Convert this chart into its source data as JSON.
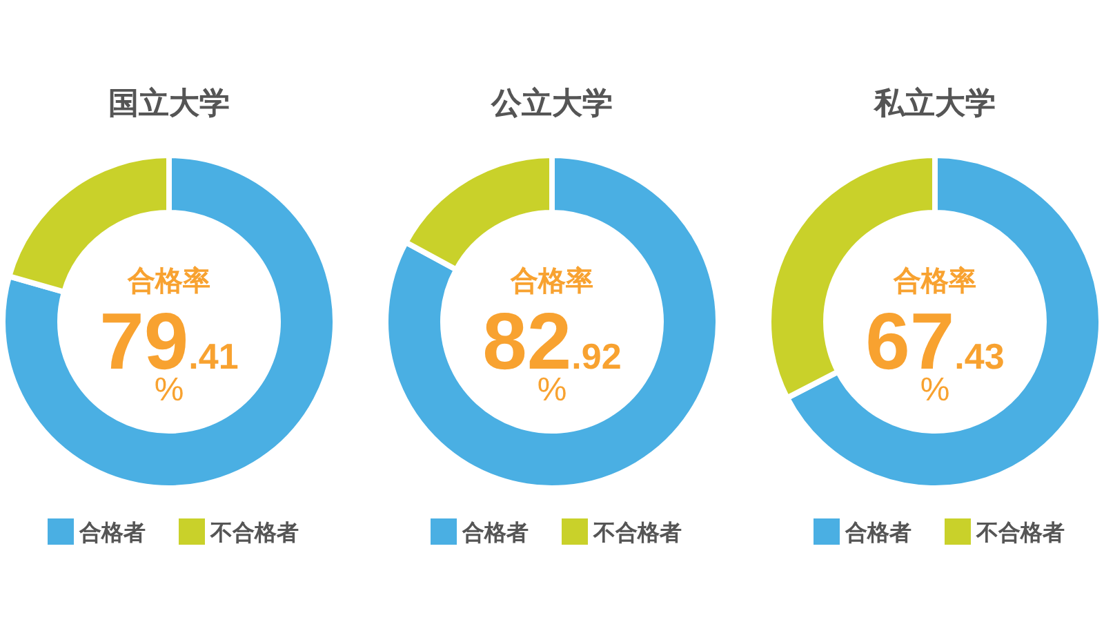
{
  "chart_data": [
    {
      "type": "donut",
      "title": "国立大学",
      "categories": [
        "合格者",
        "不合格者"
      ],
      "values": [
        79.41,
        20.59
      ],
      "colors": [
        "#4aafe3",
        "#c9d12a"
      ],
      "legend": "bottom",
      "annotations": [
        "合格率",
        "79.41",
        "%"
      ]
    },
    {
      "type": "donut",
      "title": "公立大学",
      "categories": [
        "合格者",
        "不合格者"
      ],
      "values": [
        82.92,
        17.08
      ],
      "colors": [
        "#4aafe3",
        "#c9d12a"
      ],
      "legend": "bottom",
      "annotations": [
        "合格率",
        "82.92",
        "%"
      ]
    },
    {
      "type": "donut",
      "title": "私立大学",
      "categories": [
        "合格者",
        "不合格者"
      ],
      "values": [
        67.43,
        32.57
      ],
      "colors": [
        "#4aafe3",
        "#c9d12a"
      ],
      "legend": "bottom",
      "annotations": [
        "合格率",
        "67.43",
        "%"
      ]
    }
  ]
}
